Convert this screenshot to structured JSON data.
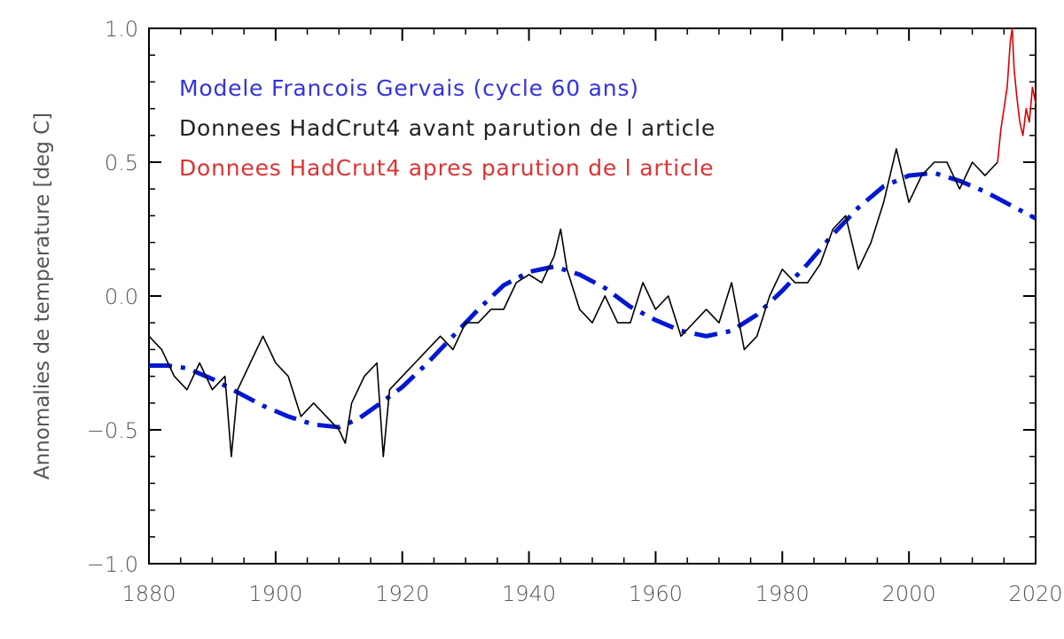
{
  "chart_data": {
    "type": "line",
    "title": "",
    "xlabel": "",
    "ylabel": "Annomalies de temperature [deg C]",
    "xlim": [
      1880,
      2020
    ],
    "ylim": [
      -1.0,
      1.0
    ],
    "x_ticks": [
      1880,
      1900,
      1920,
      1940,
      1960,
      1980,
      2000,
      2020
    ],
    "y_ticks": [
      -1.0,
      -0.5,
      0.0,
      0.5,
      1.0
    ],
    "y_tick_labels": [
      "−1.0",
      "−0.5",
      "0.0",
      "0.5",
      "1.0"
    ],
    "grid": false,
    "legend": {
      "placement": "top-left",
      "entries": [
        {
          "label": "Modele Francois Gervais (cycle 60 ans)",
          "color": "#3333dd"
        },
        {
          "label": "Donnees HadCrut4 avant parution de l article",
          "color": "#222222"
        },
        {
          "label": "Donnees HadCrut4 apres parution de l article",
          "color": "#dd3333"
        }
      ]
    },
    "series": [
      {
        "style": "dash-dot",
        "color": "#0018d0",
        "x": [
          1880,
          1883,
          1886,
          1890,
          1894,
          1898,
          1902,
          1906,
          1910,
          1913,
          1916,
          1920,
          1924,
          1928,
          1932,
          1936,
          1940,
          1944,
          1948,
          1952,
          1956,
          1960,
          1964,
          1968,
          1972,
          1976,
          1980,
          1984,
          1988,
          1992,
          1996,
          2000,
          2004,
          2008,
          2012,
          2016,
          2020
        ],
        "values": [
          -0.26,
          -0.26,
          -0.27,
          -0.31,
          -0.36,
          -0.41,
          -0.45,
          -0.48,
          -0.49,
          -0.46,
          -0.41,
          -0.34,
          -0.25,
          -0.15,
          -0.05,
          0.04,
          0.09,
          0.11,
          0.08,
          0.03,
          -0.04,
          -0.09,
          -0.13,
          -0.15,
          -0.13,
          -0.07,
          0.02,
          0.12,
          0.23,
          0.33,
          0.41,
          0.45,
          0.46,
          0.43,
          0.39,
          0.34,
          0.29
        ]
      },
      {
        "style": "solid",
        "color": "#000000",
        "x": [
          1880,
          1882,
          1884,
          1886,
          1888,
          1890,
          1892,
          1893,
          1894,
          1896,
          1898,
          1900,
          1902,
          1904,
          1906,
          1908,
          1910,
          1911,
          1912,
          1914,
          1916,
          1917,
          1918,
          1920,
          1922,
          1924,
          1926,
          1928,
          1930,
          1932,
          1934,
          1936,
          1938,
          1940,
          1942,
          1944,
          1945,
          1946,
          1948,
          1950,
          1952,
          1954,
          1956,
          1958,
          1960,
          1962,
          1964,
          1966,
          1968,
          1970,
          1972,
          1974,
          1976,
          1978,
          1980,
          1982,
          1984,
          1986,
          1988,
          1990,
          1992,
          1994,
          1996,
          1998,
          2000,
          2002,
          2004,
          2006,
          2008,
          2010,
          2012,
          2014
        ],
        "values": [
          -0.15,
          -0.2,
          -0.3,
          -0.35,
          -0.25,
          -0.35,
          -0.3,
          -0.6,
          -0.35,
          -0.25,
          -0.15,
          -0.25,
          -0.3,
          -0.45,
          -0.4,
          -0.45,
          -0.5,
          -0.55,
          -0.4,
          -0.3,
          -0.25,
          -0.6,
          -0.35,
          -0.3,
          -0.25,
          -0.2,
          -0.15,
          -0.2,
          -0.1,
          -0.1,
          -0.05,
          -0.05,
          0.05,
          0.08,
          0.05,
          0.15,
          0.25,
          0.1,
          -0.05,
          -0.1,
          0.0,
          -0.1,
          -0.1,
          0.05,
          -0.05,
          0.0,
          -0.15,
          -0.1,
          -0.05,
          -0.1,
          0.05,
          -0.2,
          -0.15,
          0.0,
          0.1,
          0.05,
          0.05,
          0.12,
          0.25,
          0.3,
          0.1,
          0.2,
          0.35,
          0.55,
          0.35,
          0.45,
          0.5,
          0.5,
          0.4,
          0.5,
          0.45,
          0.5
        ]
      },
      {
        "style": "solid",
        "color": "#dd0000",
        "x": [
          2014,
          2014.5,
          2015,
          2015.5,
          2016,
          2016.3,
          2016.6,
          2017,
          2017.5,
          2018,
          2018.5,
          2019,
          2019.5,
          2020
        ],
        "values": [
          0.5,
          0.62,
          0.7,
          0.78,
          0.95,
          1.0,
          0.85,
          0.75,
          0.65,
          0.6,
          0.7,
          0.65,
          0.78,
          0.72
        ]
      }
    ]
  }
}
